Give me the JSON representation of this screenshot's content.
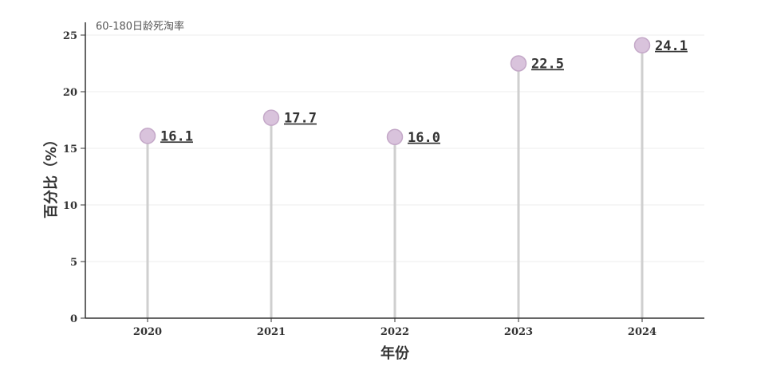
{
  "chart_data": {
    "type": "lollipop",
    "categories": [
      "2020",
      "2021",
      "2022",
      "2023",
      "2024"
    ],
    "series": [
      {
        "name": "60-180日龄死淘率",
        "values": [
          16.1,
          17.7,
          16.0,
          22.5,
          24.1
        ]
      }
    ],
    "data_labels": [
      "16.1",
      "17.7",
      "16.0",
      "22.5",
      "24.1"
    ],
    "xlabel": "年份",
    "ylabel": "百分比（%）",
    "ylim": [
      0,
      25
    ],
    "yticks": [
      0,
      5,
      10,
      15,
      20,
      25
    ],
    "grid": true,
    "legend": "none",
    "colors": {
      "marker": "#d9c3dc",
      "marker_stroke": "#c4a8c8",
      "stem": "#cfcfcf",
      "grid": "#ececec",
      "axis": "#333333"
    }
  }
}
